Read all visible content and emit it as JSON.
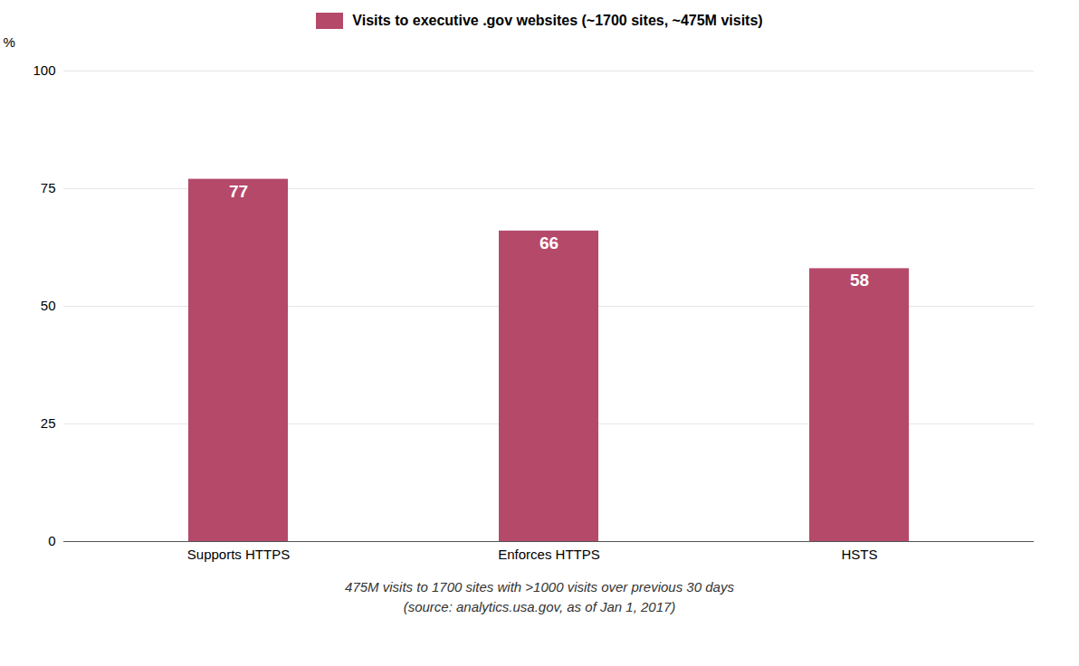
{
  "chart_data": {
    "type": "bar",
    "categories": [
      "Supports HTTPS",
      "Enforces HTTPS",
      "HSTS"
    ],
    "series": [
      {
        "name": "Visits to executive .gov websites (~1700 sites, ~475M visits)",
        "color": "#b5496a",
        "values": [
          77,
          66,
          58
        ]
      }
    ],
    "ylabel": "%",
    "ylim": [
      0,
      100
    ],
    "yticks": [
      0,
      25,
      50,
      75,
      100
    ],
    "grid": true,
    "legend": "top",
    "data_labels": true,
    "annotations": [
      "475M visits to 1700 sites with >1000 visits over previous 30 days",
      "(source: analytics.usa.gov, as of Jan 1, 2017)"
    ]
  }
}
